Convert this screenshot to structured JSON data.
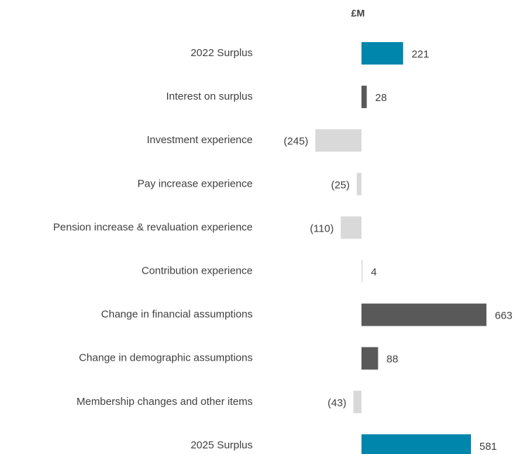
{
  "chart_data": {
    "type": "bar",
    "orientation": "horizontal",
    "unit_label": "£M",
    "categories": [
      "2022 Surplus",
      "Interest on surplus",
      "Investment experience",
      "Pay increase experience",
      "Pension increase & revaluation experience",
      "Contribution experience",
      "Change in financial assumptions",
      "Change in demographic assumptions",
      "Membership changes and other items",
      "2025 Surplus"
    ],
    "values": [
      221,
      28,
      -245,
      -25,
      -110,
      4,
      663,
      88,
      -43,
      581
    ],
    "value_labels": [
      "221",
      "28",
      "(245)",
      "(25)",
      "(110)",
      "4",
      "663",
      "88",
      "(43)",
      "581"
    ],
    "colors": [
      "#0086ad",
      "#595959",
      "#d9d9d9",
      "#d9d9d9",
      "#d9d9d9",
      "#d9d9d9",
      "#595959",
      "#595959",
      "#d9d9d9",
      "#0086ad"
    ]
  }
}
